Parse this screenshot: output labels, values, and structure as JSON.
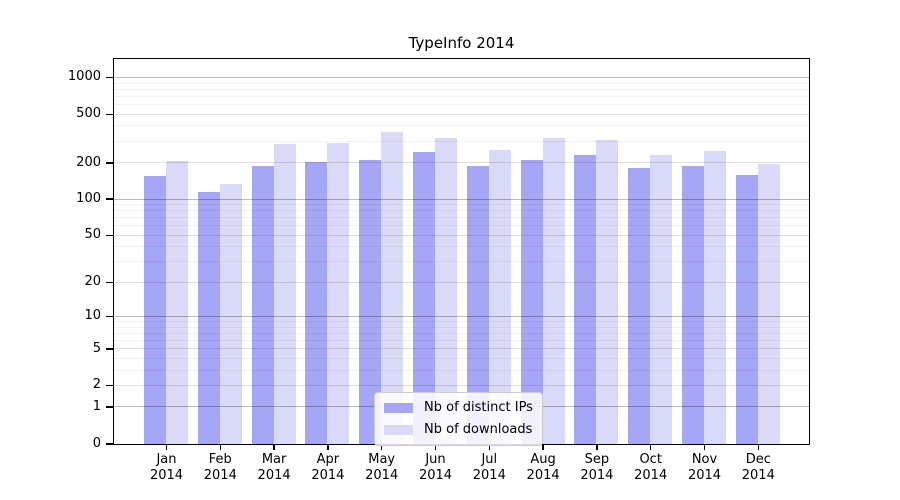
{
  "figure": {
    "background_color": "#ffffff"
  },
  "chart_data": {
    "type": "bar",
    "title": "TypeInfo 2014",
    "categories": [
      "Jan",
      "Feb",
      "Mar",
      "Apr",
      "May",
      "Jun",
      "Jul",
      "Aug",
      "Sep",
      "Oct",
      "Nov",
      "Dec"
    ],
    "year_label": "2014",
    "series": [
      {
        "name": "Nb of distinct IPs",
        "color": "#a6a6f6",
        "values": [
          155,
          116,
          189,
          203,
          213,
          246,
          189,
          213,
          233,
          182,
          190,
          159
        ]
      },
      {
        "name": "Nb of downloads",
        "color": "#d9d9f8",
        "values": [
          207,
          135,
          287,
          292,
          358,
          319,
          256,
          323,
          309,
          234,
          250,
          198
        ]
      }
    ],
    "y_axis": {
      "scale": "log10(1+x)",
      "tick_values": [
        0,
        1,
        2,
        5,
        10,
        20,
        50,
        100,
        200,
        500,
        1000
      ],
      "tick_labels": [
        "0",
        "1",
        "2",
        "5",
        "10",
        "20",
        "50",
        "100",
        "200",
        "500",
        "1000"
      ],
      "range": [
        0,
        1485
      ],
      "grid": true,
      "minor_grid_values": [
        3,
        4,
        6,
        7,
        8,
        9,
        30,
        40,
        60,
        70,
        80,
        90,
        300,
        400,
        600,
        700,
        800,
        900
      ],
      "decade_grid_values": [
        1,
        10,
        100,
        1000
      ],
      "mid_grid_values": [
        2,
        5,
        20,
        50,
        200,
        500
      ]
    },
    "x_axis": {
      "grid": false
    },
    "legend": {
      "position": "lower center"
    }
  }
}
